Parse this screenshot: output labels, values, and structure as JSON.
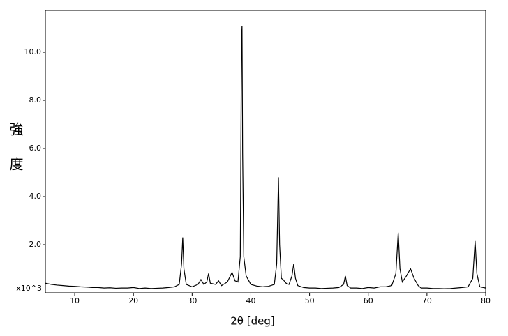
{
  "chart_data": {
    "type": "line",
    "x_label": "2θ [deg]",
    "y_label": "強度",
    "y_unit_label": "x10^3",
    "xlim": [
      5,
      80
    ],
    "ylim": [
      0,
      11.74
    ],
    "xticks": [
      10,
      20,
      30,
      40,
      50,
      60,
      70,
      80
    ],
    "yticks": [
      {
        "value": 2,
        "label": "2.0"
      },
      {
        "value": 4,
        "label": "4.0"
      },
      {
        "value": 6,
        "label": "6.0"
      },
      {
        "value": 8,
        "label": "8.0"
      },
      {
        "value": 10,
        "label": "10.0"
      }
    ],
    "series": [
      {
        "color": "#000000",
        "x": [
          5,
          6,
          7,
          8,
          9,
          10,
          11,
          12,
          13,
          14,
          15,
          16,
          17,
          18,
          19,
          20,
          21,
          22,
          23,
          24,
          25,
          26,
          27,
          27.8,
          28.2,
          28.4,
          28.6,
          29,
          30,
          31,
          31.5,
          32,
          32.5,
          32.8,
          33.1,
          34,
          34.5,
          35,
          36,
          36.8,
          37.3,
          37.8,
          38.2,
          38.4,
          38.5,
          38.6,
          38.8,
          39.2,
          40,
          41,
          42,
          43,
          44,
          44.4,
          44.7,
          44.9,
          45.2,
          45.5,
          46,
          46.5,
          47,
          47.3,
          47.6,
          48,
          49,
          50,
          51,
          52,
          53,
          54,
          55,
          55.8,
          56.1,
          56.4,
          57,
          58,
          59,
          60,
          61,
          62,
          63,
          64,
          64.7,
          65.1,
          65.4,
          65.8,
          66.5,
          67.2,
          67.8,
          68.5,
          69,
          70,
          71,
          72,
          73,
          74,
          75,
          76,
          77,
          77.8,
          78.2,
          78.5,
          79,
          80
        ],
        "values": [
          0.4,
          0.35,
          0.32,
          0.3,
          0.28,
          0.27,
          0.25,
          0.24,
          0.22,
          0.22,
          0.2,
          0.21,
          0.19,
          0.2,
          0.2,
          0.22,
          0.18,
          0.2,
          0.18,
          0.19,
          0.2,
          0.22,
          0.25,
          0.35,
          1.2,
          2.3,
          1.0,
          0.35,
          0.25,
          0.35,
          0.55,
          0.35,
          0.45,
          0.8,
          0.4,
          0.35,
          0.5,
          0.3,
          0.45,
          0.85,
          0.5,
          0.45,
          1.5,
          10.5,
          11.1,
          5.8,
          1.5,
          0.7,
          0.35,
          0.28,
          0.25,
          0.27,
          0.35,
          1.2,
          4.8,
          2.0,
          0.6,
          0.55,
          0.4,
          0.35,
          0.7,
          1.2,
          0.6,
          0.3,
          0.22,
          0.2,
          0.2,
          0.18,
          0.19,
          0.2,
          0.22,
          0.35,
          0.7,
          0.3,
          0.2,
          0.2,
          0.18,
          0.22,
          0.2,
          0.25,
          0.25,
          0.3,
          0.8,
          2.5,
          1.0,
          0.45,
          0.7,
          1.0,
          0.6,
          0.3,
          0.2,
          0.2,
          0.18,
          0.18,
          0.17,
          0.18,
          0.2,
          0.22,
          0.25,
          0.6,
          2.15,
          0.8,
          0.25,
          0.2
        ]
      }
    ]
  }
}
